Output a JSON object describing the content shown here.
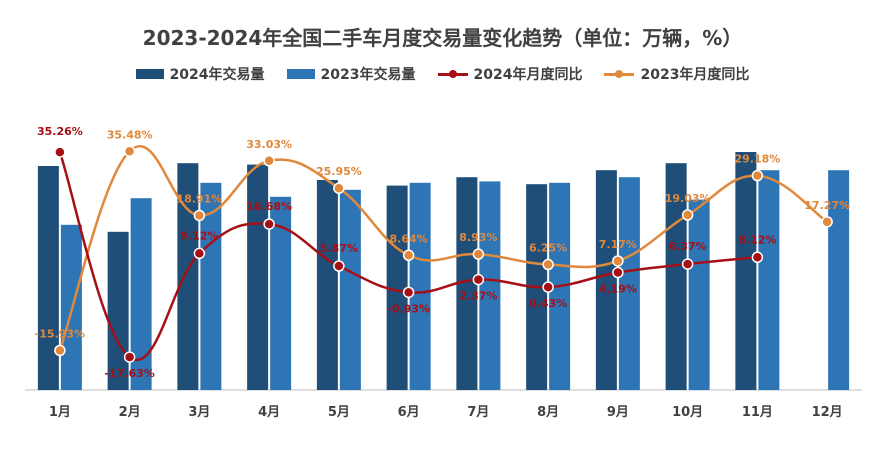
{
  "colors": {
    "bar2024": "#1f4e79",
    "bar2023": "#2e75b6",
    "line2024": "#a50f15",
    "line2023": "#e0883b",
    "axis": "#bfbfbf",
    "text": "#404040"
  },
  "chart_data": {
    "type": "bar",
    "title": "2023-2024年全国二手车月度交易量变化趋势（单位：万辆，%）",
    "categories": [
      "1月",
      "2月",
      "3月",
      "4月",
      "5月",
      "6月",
      "7月",
      "8月",
      "9月",
      "10月",
      "11月",
      "12月"
    ],
    "series": [
      {
        "name": "2024年交易量",
        "type": "bar",
        "values": [
          160,
          113,
          162,
          161,
          150,
          146,
          152,
          147,
          157,
          162,
          170,
          null
        ]
      },
      {
        "name": "2023年交易量",
        "type": "bar",
        "values": [
          118,
          137,
          148,
          138,
          143,
          148,
          149,
          148,
          152,
          136,
          157,
          157
        ]
      },
      {
        "name": "2024年月度同比",
        "type": "line",
        "values": [
          35.26,
          -17.63,
          9.12,
          16.68,
          5.87,
          -0.93,
          2.37,
          0.43,
          4.19,
          6.37,
          8.12,
          null
        ],
        "labels": [
          "35.26%",
          "-17.63%",
          "9.12%",
          "16.68%",
          "5.87%",
          "-0.93%",
          "2.37%",
          "0.43%",
          "4.19%",
          "6.37%",
          "8.12%",
          ""
        ]
      },
      {
        "name": "2023年月度同比",
        "type": "line",
        "values": [
          -15.93,
          35.48,
          18.91,
          33.03,
          25.95,
          8.64,
          8.93,
          6.25,
          7.17,
          19.03,
          29.18,
          17.27
        ],
        "labels": [
          "-15.93%",
          "35.48%",
          "18.91%",
          "33.03%",
          "25.95%",
          "8.64%",
          "8.93%",
          "6.25%",
          "7.17%",
          "19.03%",
          "29.18%",
          "17.27%"
        ]
      }
    ],
    "bar_ylim": [
      0,
      200
    ],
    "line_ylim": [
      -30,
      50
    ],
    "grid": false,
    "legend": "top-center"
  }
}
